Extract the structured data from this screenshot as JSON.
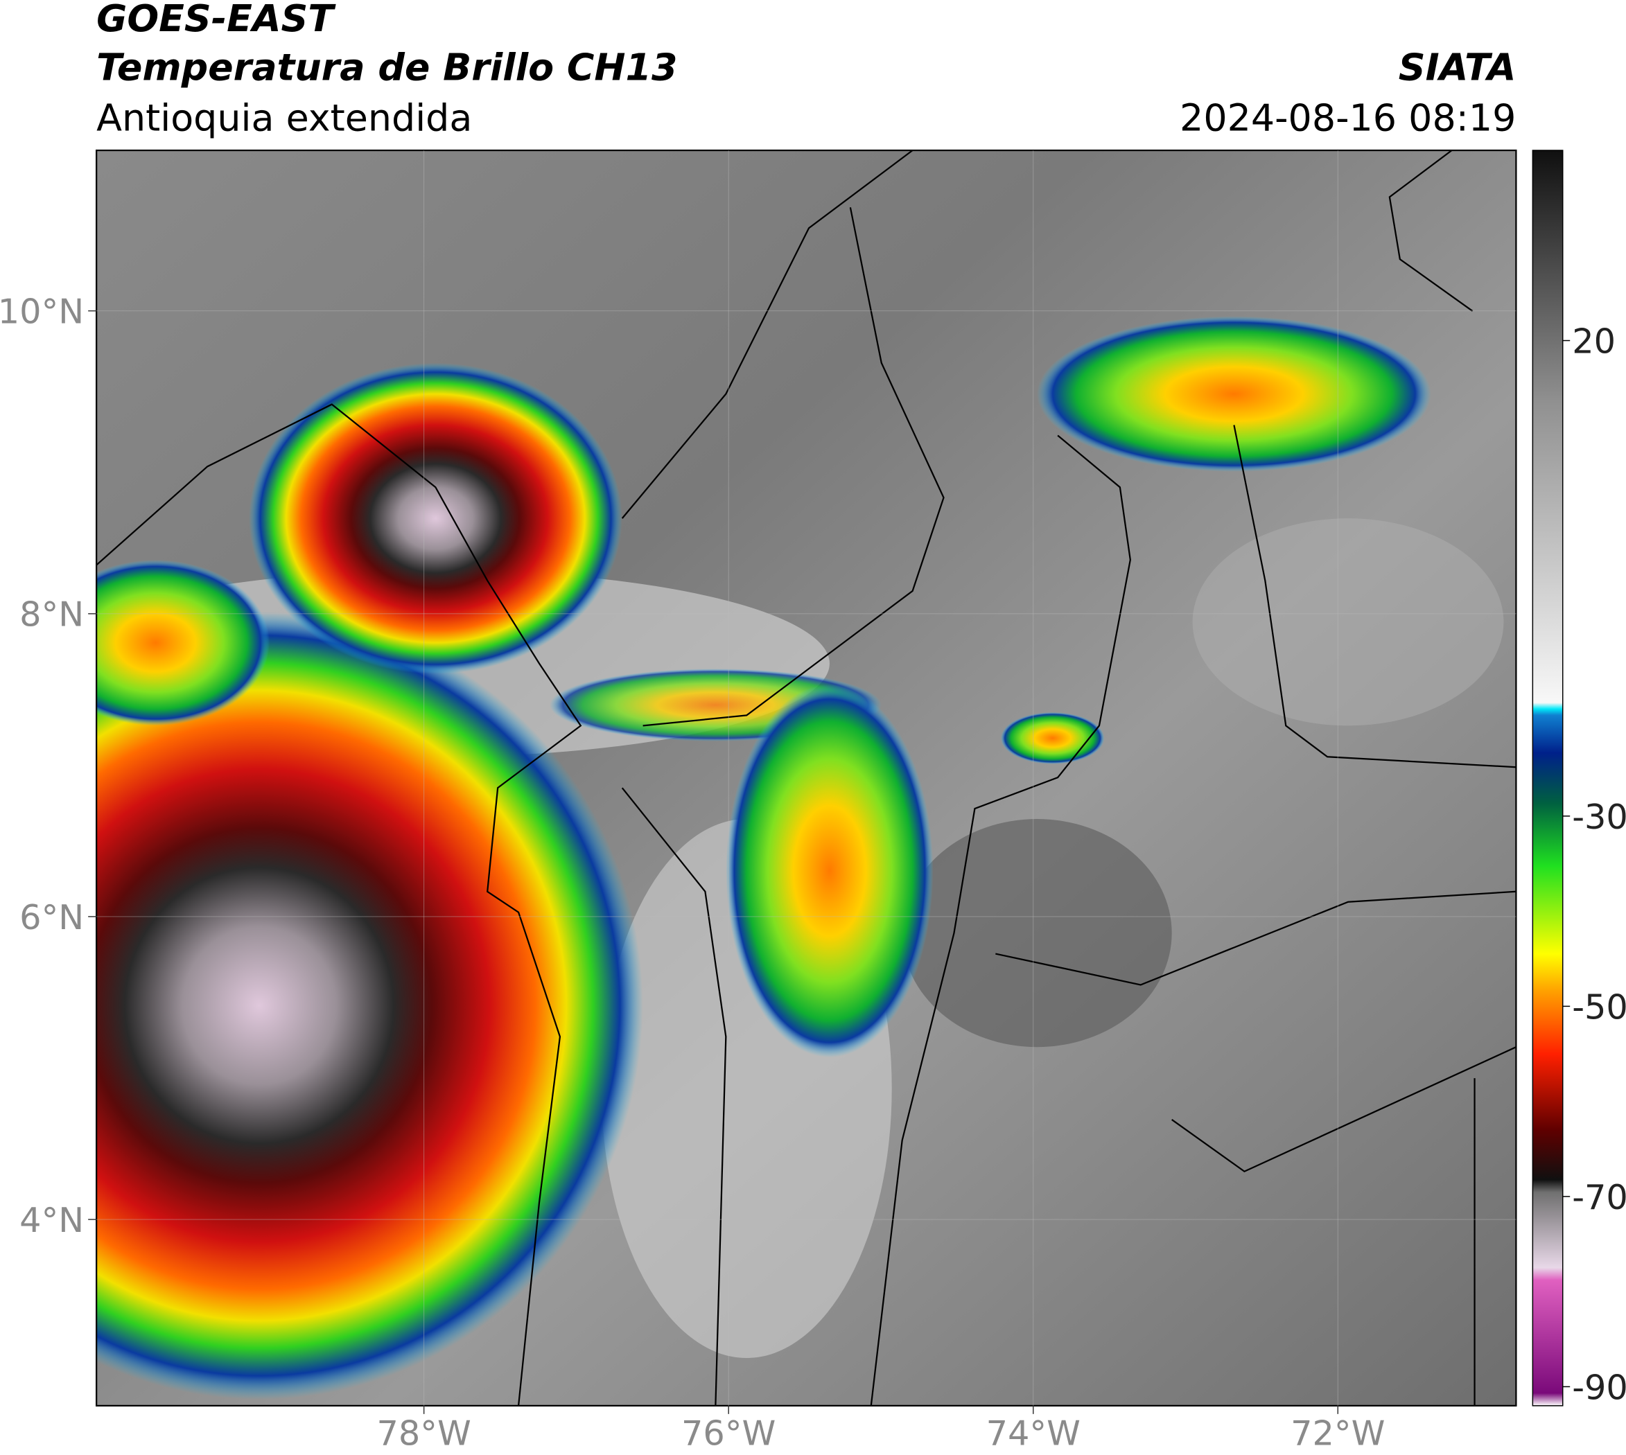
{
  "header": {
    "title": "GOES-EAST",
    "subtitle": "Temperatura de Brillo CH13",
    "region": "Antioquia extendida",
    "source": "SIATA",
    "datetime": "2024-08-16 08:19"
  },
  "map": {
    "xlim": [
      -80.15,
      -70.83
    ],
    "ylim": [
      2.77,
      11.06
    ],
    "xticks": [
      {
        "value": -78,
        "label": "78°W"
      },
      {
        "value": -76,
        "label": "76°W"
      },
      {
        "value": -74,
        "label": "74°W"
      },
      {
        "value": -72,
        "label": "72°W"
      }
    ],
    "yticks": [
      {
        "value": 4,
        "label": "4°N"
      },
      {
        "value": 6,
        "label": "6°N"
      },
      {
        "value": 8,
        "label": "8°N"
      },
      {
        "value": 10,
        "label": "10°N"
      }
    ],
    "grid": true
  },
  "colorbar": {
    "clim": [
      -92,
      40
    ],
    "ticks": [
      20,
      -30,
      -50,
      -70,
      -90
    ]
  }
}
